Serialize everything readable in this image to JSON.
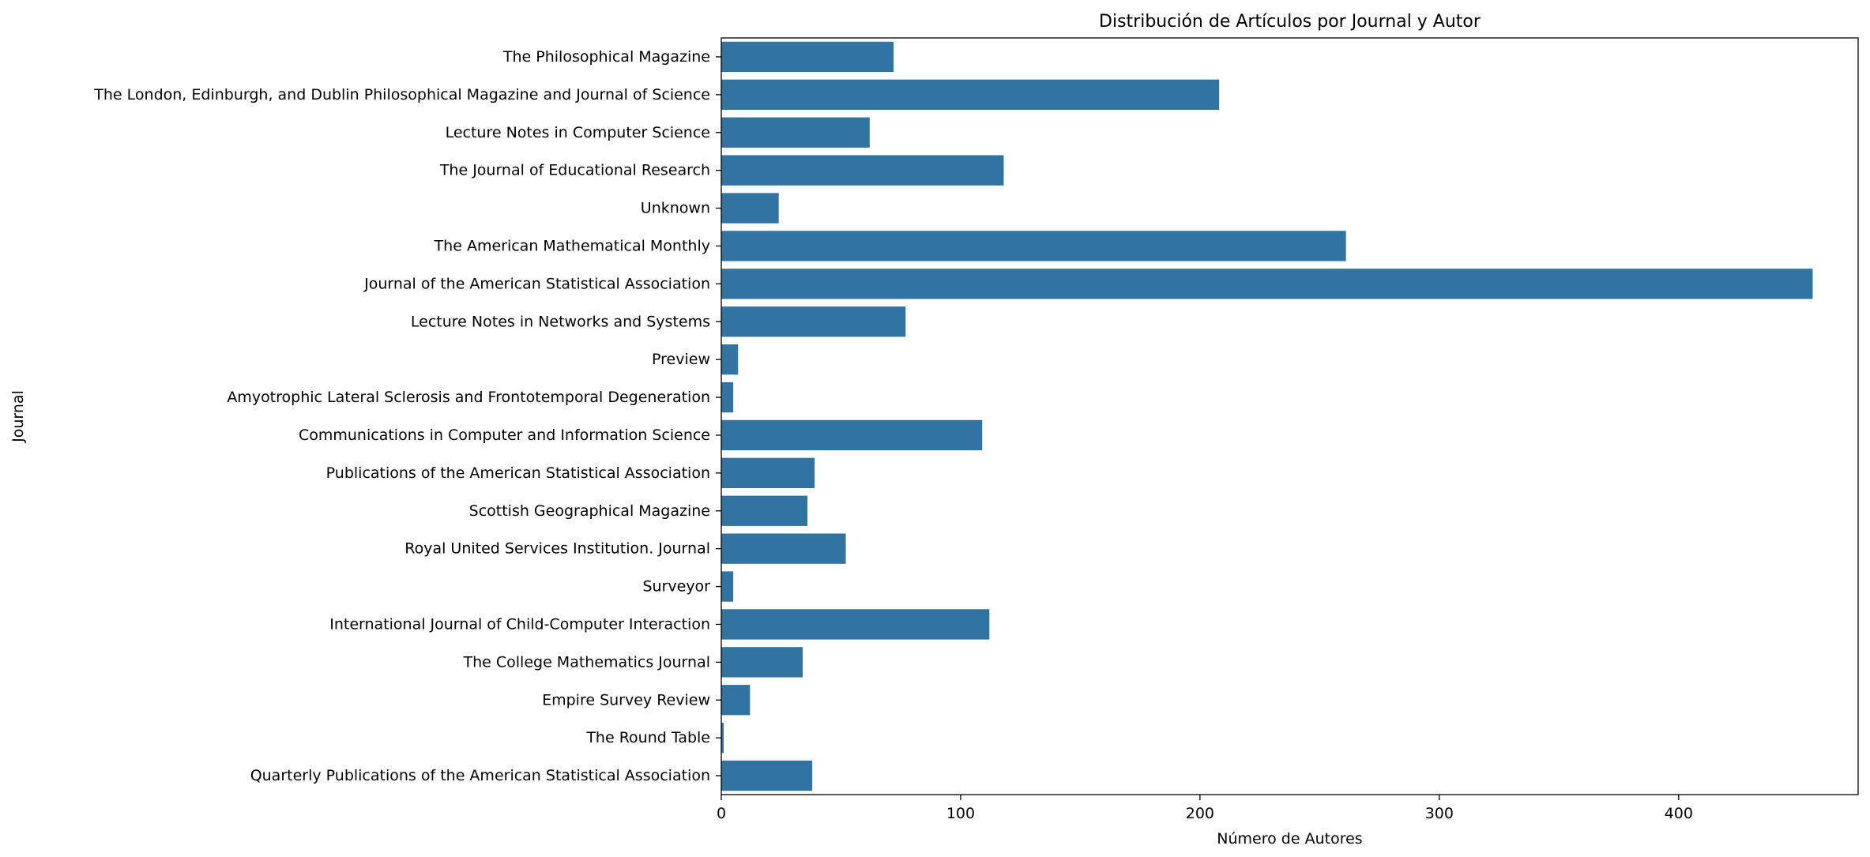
{
  "chart_data": {
    "type": "bar",
    "orientation": "horizontal",
    "title": "Distribución de Artículos por Journal y Autor",
    "xlabel": "Número de Autores",
    "ylabel": "Journal",
    "xlim": [
      0,
      475
    ],
    "xticks": [
      0,
      100,
      200,
      300,
      400
    ],
    "grid": false,
    "bar_color": "#3274a1",
    "categories": [
      "The Philosophical Magazine",
      "The London, Edinburgh, and Dublin Philosophical Magazine and Journal of Science",
      "Lecture Notes in Computer Science",
      "The Journal of Educational Research",
      "Unknown",
      "The American Mathematical Monthly",
      "Journal of the American Statistical Association",
      "Lecture Notes in Networks and Systems",
      "Preview",
      "Amyotrophic Lateral Sclerosis and Frontotemporal Degeneration",
      "Communications in Computer and Information Science",
      "Publications of the American Statistical Association",
      "Scottish Geographical Magazine",
      "Royal United Services Institution. Journal",
      "Surveyor",
      "International Journal of Child-Computer Interaction",
      "The College Mathematics Journal",
      "Empire Survey Review",
      "The Round Table",
      "Quarterly Publications of the American Statistical Association"
    ],
    "values": [
      72,
      208,
      62,
      118,
      24,
      261,
      456,
      77,
      7,
      5,
      109,
      39,
      36,
      52,
      5,
      112,
      34,
      12,
      1,
      38
    ]
  }
}
